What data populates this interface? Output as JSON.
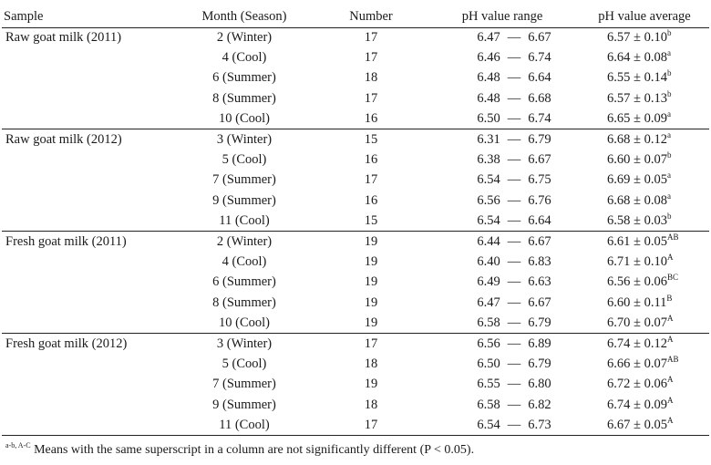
{
  "headers": {
    "sample": "Sample",
    "month": "Month (Season)",
    "number": "Number",
    "range": "pH value range",
    "average": "pH value average"
  },
  "rows": [
    {
      "sample": "Raw goat milk (2011)",
      "month": "2 (Winter)",
      "number": "17",
      "range_low": "6.47",
      "range_high": "6.67",
      "avg": "6.57 ± 0.10",
      "sup": "b"
    },
    {
      "sample": "",
      "month": "4 (Cool)",
      "number": "17",
      "range_low": "6.46",
      "range_high": "6.74",
      "avg": "6.64 ± 0.08",
      "sup": "a"
    },
    {
      "sample": "",
      "month": "6 (Summer)",
      "number": "18",
      "range_low": "6.48",
      "range_high": "6.64",
      "avg": "6.55 ± 0.14",
      "sup": "b"
    },
    {
      "sample": "",
      "month": "8 (Summer)",
      "number": "17",
      "range_low": "6.48",
      "range_high": "6.68",
      "avg": "6.57 ± 0.13",
      "sup": "b"
    },
    {
      "sample": "",
      "month": "10 (Cool)",
      "number": "16",
      "range_low": "6.50",
      "range_high": "6.74",
      "avg": "6.65 ± 0.09",
      "sup": "a"
    },
    {
      "sample": "Raw goat milk (2012)",
      "month": "3 (Winter)",
      "number": "15",
      "range_low": "6.31",
      "range_high": "6.79",
      "avg": "6.68 ± 0.12",
      "sup": "a"
    },
    {
      "sample": "",
      "month": "5 (Cool)",
      "number": "16",
      "range_low": "6.38",
      "range_high": "6.67",
      "avg": "6.60 ± 0.07",
      "sup": "b"
    },
    {
      "sample": "",
      "month": "7 (Summer)",
      "number": "17",
      "range_low": "6.54",
      "range_high": "6.75",
      "avg": "6.69 ± 0.05",
      "sup": "a"
    },
    {
      "sample": "",
      "month": "9 (Summer)",
      "number": "16",
      "range_low": "6.56",
      "range_high": "6.76",
      "avg": "6.68 ± 0.08",
      "sup": "a"
    },
    {
      "sample": "",
      "month": "11 (Cool)",
      "number": "15",
      "range_low": "6.54",
      "range_high": "6.64",
      "avg": "6.58 ± 0.03",
      "sup": "b"
    },
    {
      "sample": "Fresh goat milk (2011)",
      "month": "2 (Winter)",
      "number": "19",
      "range_low": "6.44",
      "range_high": "6.67",
      "avg": "6.61 ± 0.05",
      "sup": "AB"
    },
    {
      "sample": "",
      "month": "4 (Cool)",
      "number": "19",
      "range_low": "6.40",
      "range_high": "6.83",
      "avg": "6.71 ± 0.10",
      "sup": "A"
    },
    {
      "sample": "",
      "month": "6 (Summer)",
      "number": "19",
      "range_low": "6.49",
      "range_high": "6.63",
      "avg": "6.56 ± 0.06",
      "sup": "BC"
    },
    {
      "sample": "",
      "month": "8 (Summer)",
      "number": "19",
      "range_low": "6.47",
      "range_high": "6.67",
      "avg": "6.60 ± 0.11",
      "sup": "B"
    },
    {
      "sample": "",
      "month": "10 (Cool)",
      "number": "19",
      "range_low": "6.58",
      "range_high": "6.79",
      "avg": "6.70 ± 0.07",
      "sup": "A"
    },
    {
      "sample": "Fresh goat milk (2012)",
      "month": "3 (Winter)",
      "number": "17",
      "range_low": "6.56",
      "range_high": "6.89",
      "avg": "6.74 ± 0.12",
      "sup": "A"
    },
    {
      "sample": "",
      "month": "5 (Cool)",
      "number": "18",
      "range_low": "6.50",
      "range_high": "6.79",
      "avg": "6.66 ± 0.07",
      "sup": "AB"
    },
    {
      "sample": "",
      "month": "7 (Summer)",
      "number": "19",
      "range_low": "6.55",
      "range_high": "6.80",
      "avg": "6.72 ± 0.06",
      "sup": "A"
    },
    {
      "sample": "",
      "month": "9 (Summer)",
      "number": "18",
      "range_low": "6.58",
      "range_high": "6.82",
      "avg": "6.74 ± 0.09",
      "sup": "A"
    },
    {
      "sample": "",
      "month": "11 (Cool)",
      "number": "17",
      "range_low": "6.54",
      "range_high": "6.73",
      "avg": "6.67 ± 0.05",
      "sup": "A"
    }
  ],
  "range_separator": "—",
  "footnote": {
    "sup": "a-b, A-C",
    "text": "Means with the same superscript in a column are not significantly different (P < 0.05)."
  }
}
